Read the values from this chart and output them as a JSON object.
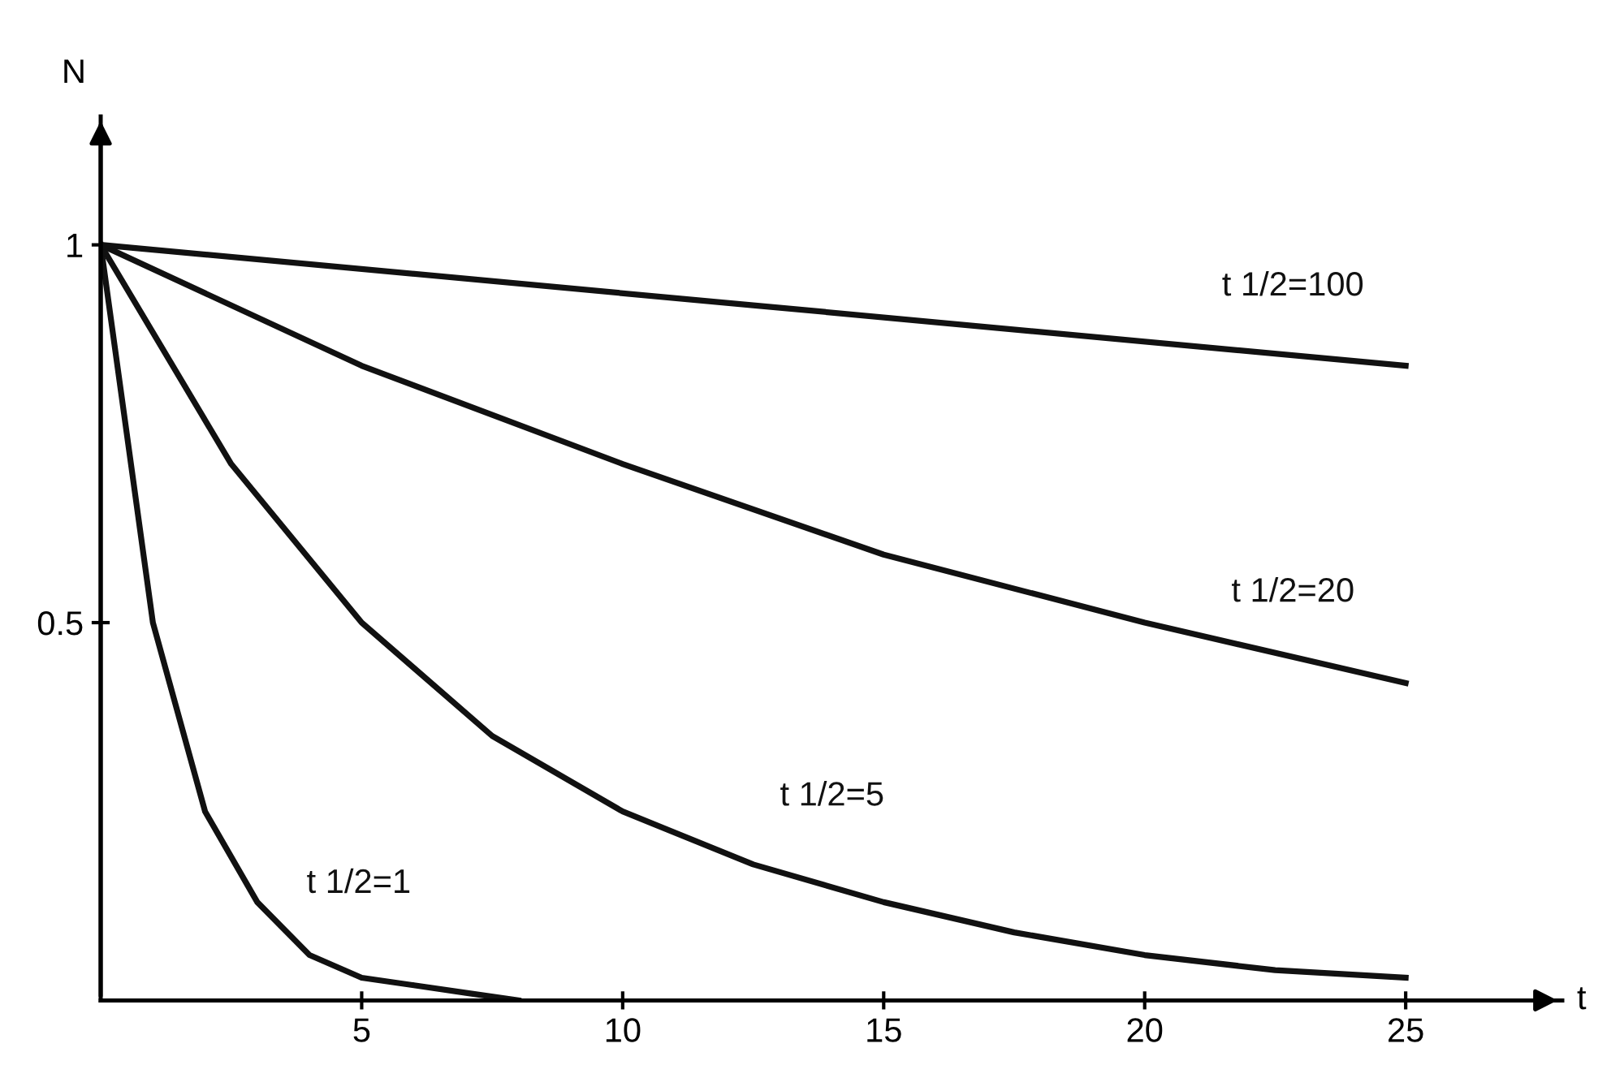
{
  "chart_data": {
    "type": "line",
    "xlabel": "t",
    "ylabel": "N",
    "series": [
      {
        "name": "t 1/2=1",
        "color": "#111111",
        "x": [
          0,
          1,
          2,
          3,
          4,
          5,
          6,
          7,
          8
        ],
        "values": [
          1,
          0.5,
          0.25,
          0.13,
          0.06,
          0.03,
          0.02,
          0.01,
          0
        ]
      },
      {
        "name": "t 1/2=5",
        "color": "#111111",
        "x": [
          0,
          2.5,
          5,
          7.5,
          10,
          12.5,
          15,
          17.5,
          20,
          22.5,
          25
        ],
        "values": [
          1,
          0.71,
          0.5,
          0.35,
          0.25,
          0.18,
          0.13,
          0.09,
          0.06,
          0.04,
          0.03
        ]
      },
      {
        "name": "t 1/2=20",
        "color": "#111111",
        "x": [
          0,
          5,
          10,
          15,
          20,
          25
        ],
        "values": [
          1,
          0.84,
          0.71,
          0.59,
          0.5,
          0.42
        ]
      },
      {
        "name": "t 1/2=100",
        "color": "#111111",
        "x": [
          0,
          12.5,
          25
        ],
        "values": [
          1,
          0.92,
          0.84
        ]
      }
    ],
    "xlim": [
      0,
      28
    ],
    "ylim": [
      0,
      1.17
    ],
    "xticks": [
      5,
      10,
      15,
      20,
      25
    ],
    "yticks": [
      0.5,
      1
    ],
    "grid": false,
    "legend": false,
    "marker": "none",
    "line_style": "solid"
  }
}
